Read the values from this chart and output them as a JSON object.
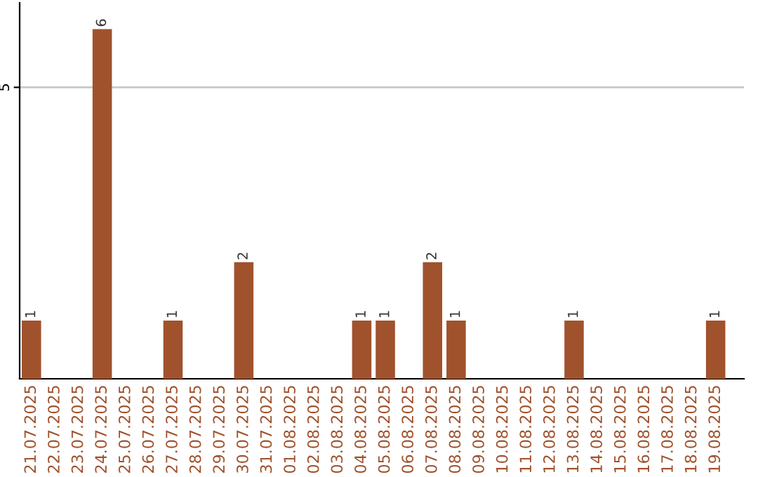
{
  "chart_data": {
    "type": "bar",
    "categories": [
      "21.07.2025",
      "22.07.2025",
      "23.07.2025",
      "24.07.2025",
      "25.07.2025",
      "26.07.2025",
      "27.07.2025",
      "28.07.2025",
      "29.07.2025",
      "30.07.2025",
      "31.07.2025",
      "01.08.2025",
      "02.08.2025",
      "03.08.2025",
      "04.08.2025",
      "05.08.2025",
      "06.08.2025",
      "07.08.2025",
      "08.08.2025",
      "09.08.2025",
      "10.08.2025",
      "11.08.2025",
      "12.08.2025",
      "13.08.2025",
      "14.08.2025",
      "15.08.2025",
      "16.08.2025",
      "17.08.2025",
      "18.08.2025",
      "19.08.2025"
    ],
    "values": [
      1,
      0,
      0,
      6,
      0,
      0,
      1,
      0,
      0,
      2,
      0,
      0,
      0,
      0,
      1,
      1,
      0,
      2,
      1,
      0,
      0,
      0,
      0,
      1,
      0,
      0,
      0,
      0,
      0,
      1
    ],
    "value_labels": [
      "1",
      null,
      null,
      "6",
      null,
      null,
      "1",
      null,
      null,
      "2",
      null,
      null,
      null,
      null,
      "1",
      "1",
      null,
      "2",
      "1",
      null,
      null,
      null,
      null,
      "1",
      null,
      null,
      null,
      null,
      null,
      "1"
    ],
    "color": "#a0522d",
    "ylim": [
      0,
      6.45
    ],
    "yticks": [
      5
    ],
    "grid": "y"
  }
}
